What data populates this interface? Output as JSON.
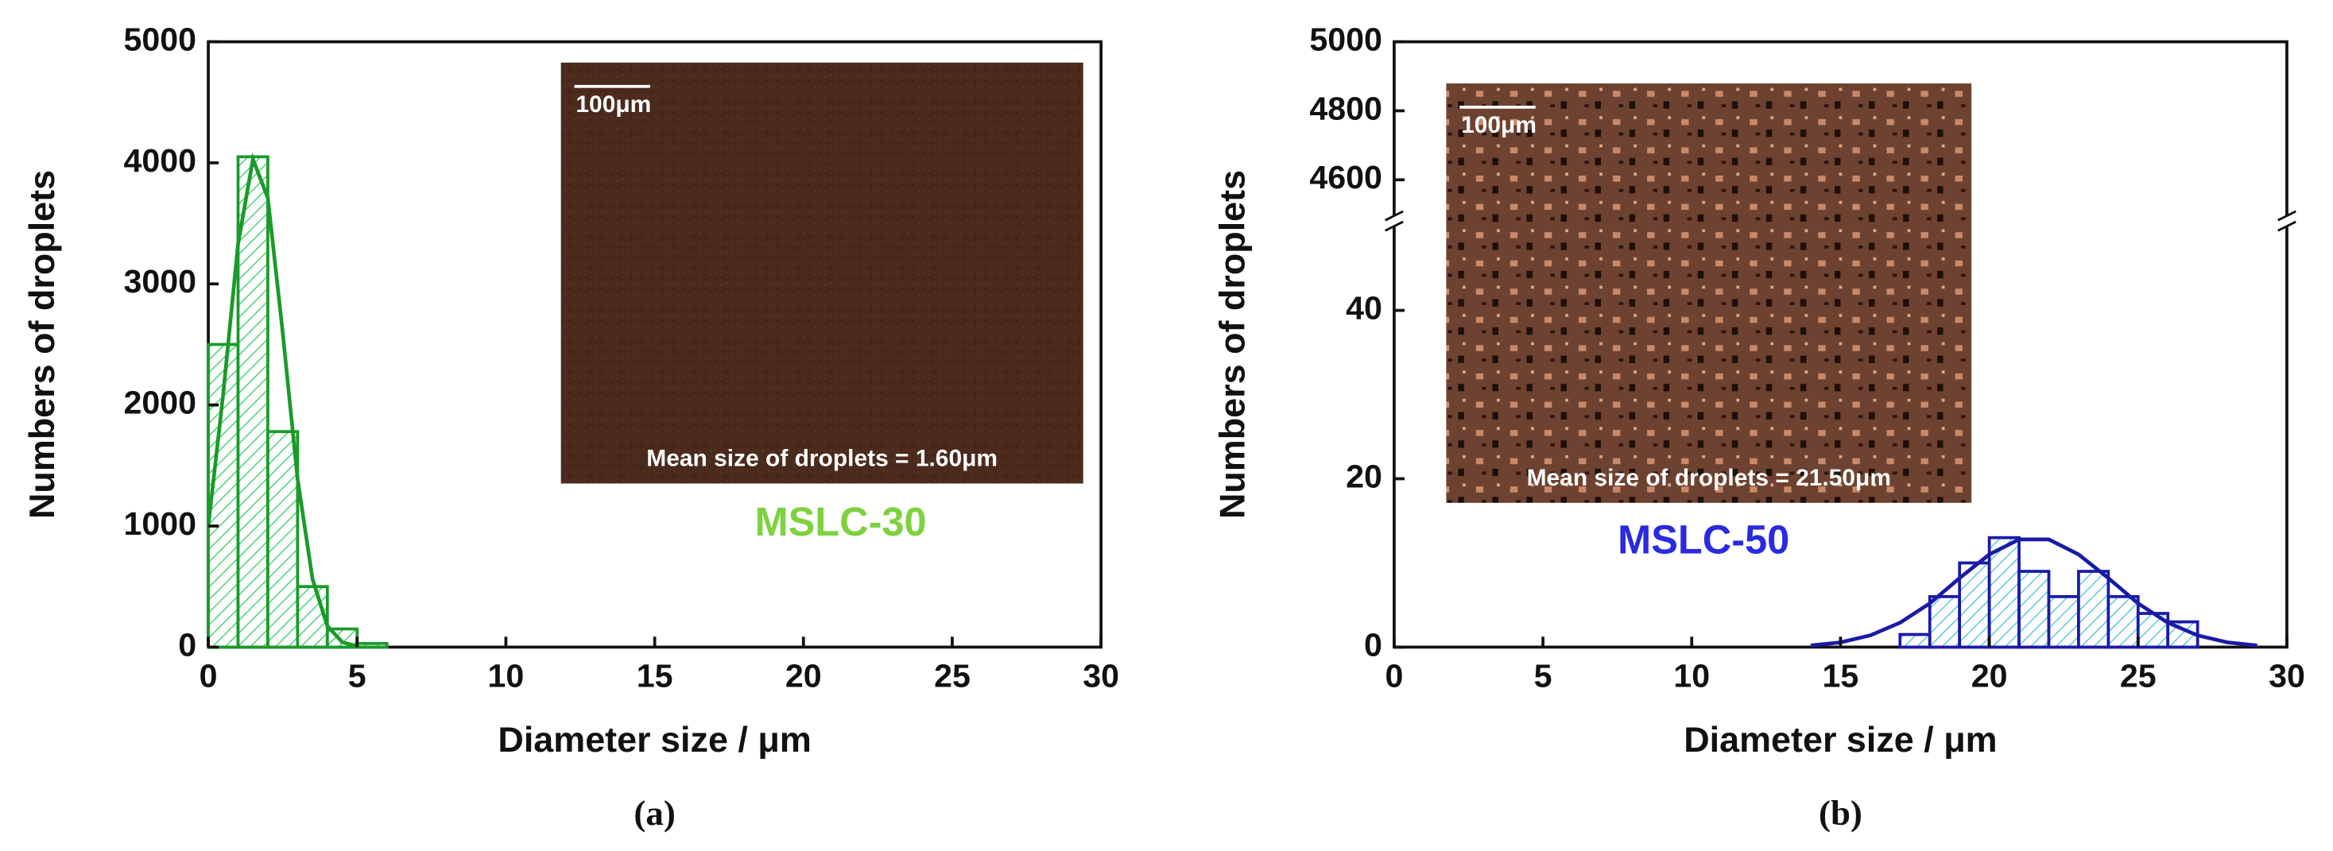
{
  "chart_data": [
    {
      "type": "histogram",
      "bins": [
        0,
        1,
        2,
        3,
        4,
        5,
        6
      ],
      "counts": [
        2500,
        4050,
        1780,
        500,
        150,
        30
      ],
      "color": "#1a9a2a",
      "hatch_color": "#4fd07a",
      "fit": {
        "x": [
          0,
          0.5,
          1,
          1.5,
          2,
          2.5,
          3,
          3.5,
          4,
          4.5,
          5
        ],
        "values": [
          1000,
          2090,
          3330,
          4030,
          3710,
          2600,
          1390,
          565,
          174,
          40,
          7
        ]
      },
      "xlim": [
        0,
        30
      ],
      "xticks": [
        0,
        5,
        10,
        15,
        20,
        25,
        30
      ],
      "ylim": [
        0,
        5000
      ],
      "yticks": [
        0,
        1000,
        2000,
        3000,
        4000,
        5000
      ],
      "x_label": "Diameter size / μm",
      "y_label": "Numbers of droplets",
      "label": "MSLC-30",
      "label_color": "#7ed13f",
      "caption": "(a)",
      "inset": {
        "scale_bar": "100μm",
        "text": "Mean size of droplets = 1.60μm"
      }
    },
    {
      "type": "histogram",
      "bins": [
        17,
        18,
        19,
        20,
        21,
        22,
        23,
        24,
        25,
        26,
        27
      ],
      "counts": [
        1.5,
        6,
        10,
        13,
        9,
        6,
        9,
        6,
        4,
        3
      ],
      "color": "#1a1aa8",
      "hatch_color": "#5fc8e0",
      "fit": {
        "x": [
          14,
          15,
          16,
          17,
          18,
          19,
          20,
          21,
          22,
          23,
          24,
          25,
          26,
          27,
          28,
          29
        ],
        "values": [
          0.2,
          0.57,
          1.4,
          2.9,
          5.2,
          8.2,
          11,
          12.8,
          12.8,
          11,
          8.2,
          5.2,
          2.9,
          1.4,
          0.57,
          0.2
        ]
      },
      "xlim": [
        0,
        30
      ],
      "xticks": [
        0,
        5,
        10,
        15,
        20,
        25,
        30
      ],
      "ylim": [
        0,
        50
      ],
      "yticks": [
        0,
        20,
        40
      ],
      "ylim_upper": [
        4500,
        5000
      ],
      "yticks_upper": [
        4600,
        4800,
        5000
      ],
      "x_label": "Diameter size / μm",
      "y_label": "Numbers of droplets",
      "label": "MSLC-50",
      "label_color": "#2a2ae0",
      "caption": "(b)",
      "inset": {
        "scale_bar": "100μm",
        "text": "Mean size of droplets = 21.50μm"
      }
    }
  ]
}
